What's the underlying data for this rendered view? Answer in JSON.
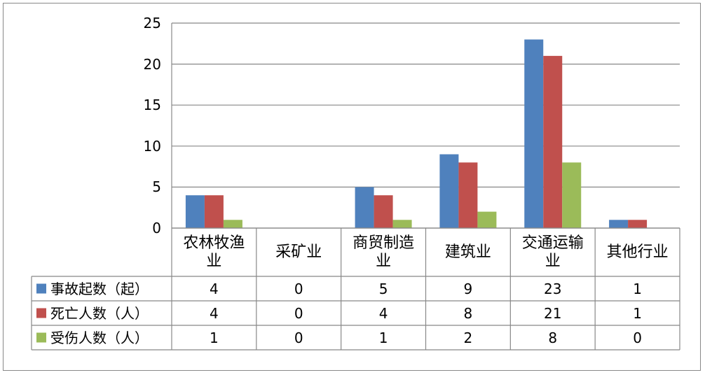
{
  "chart_data": {
    "type": "bar",
    "categories": [
      "农林牧渔业",
      "采矿业",
      "商贸制造业",
      "建筑业",
      "交通运输业",
      "其他行业"
    ],
    "series": [
      {
        "name": "事故起数（起）",
        "color": "#4f81bd",
        "values": [
          4,
          0,
          5,
          9,
          23,
          1
        ]
      },
      {
        "name": "死亡人数（人）",
        "color": "#c0504d",
        "values": [
          4,
          0,
          4,
          8,
          21,
          1
        ]
      },
      {
        "name": "受伤人数（人）",
        "color": "#9bbb59",
        "values": [
          1,
          0,
          1,
          2,
          8,
          0
        ]
      }
    ],
    "ylim": [
      0,
      25
    ],
    "yticks": [
      0,
      5,
      10,
      15,
      20,
      25
    ],
    "grid": true
  }
}
